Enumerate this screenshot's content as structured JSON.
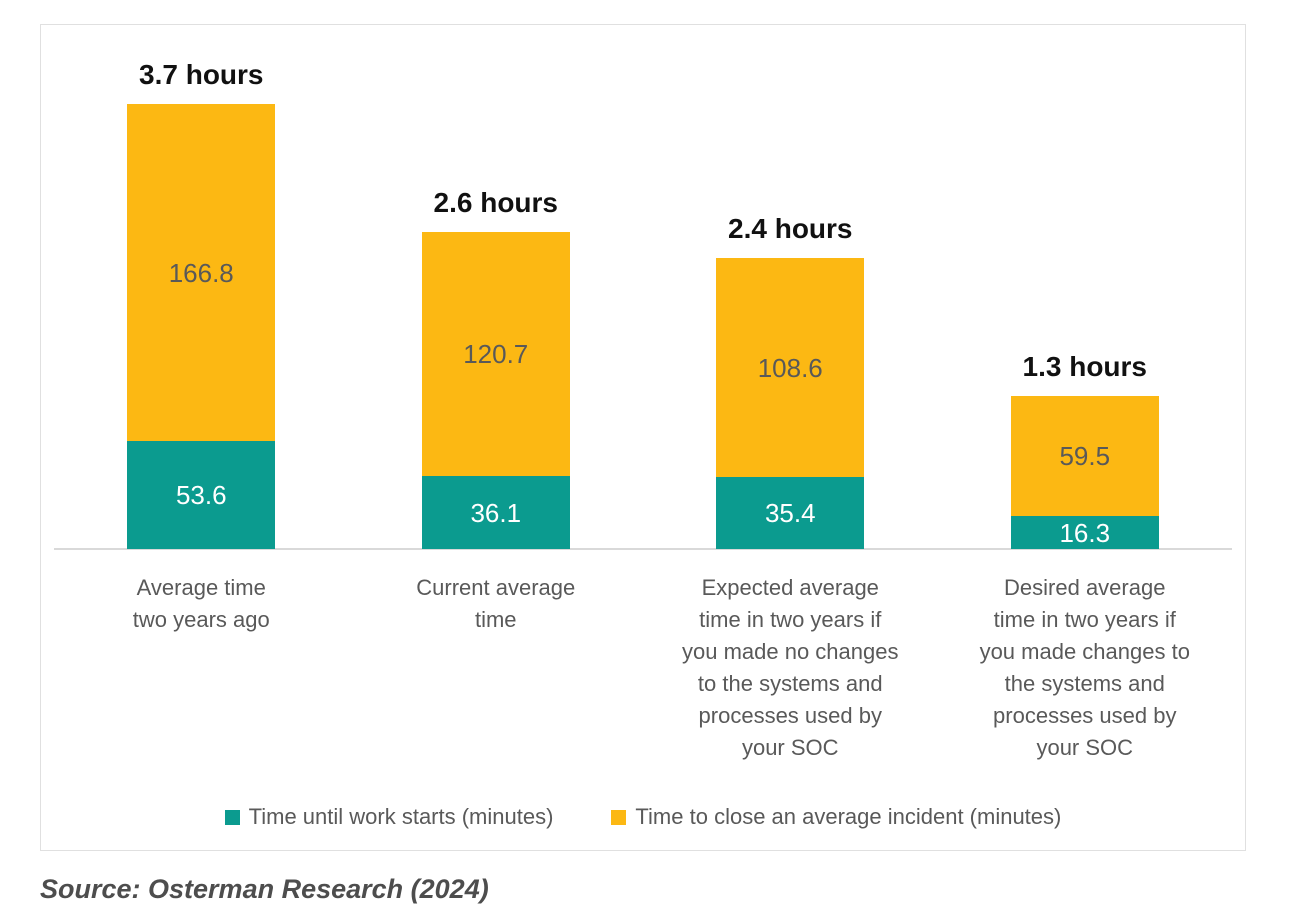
{
  "chart_data": {
    "type": "bar",
    "stacked": true,
    "title": "",
    "units": "minutes",
    "grid": false,
    "legend_position": "bottom",
    "axis_color": "#d9d9d9",
    "categories": [
      "Average time two years ago",
      "Current average time",
      "Expected average time in two years if you made no changes to the systems and processes used by your SOC",
      "Desired average time in two years if you made changes to the systems and processes used by your SOC"
    ],
    "category_lines": [
      [
        "Average time",
        "two years ago"
      ],
      [
        "Current average",
        "time"
      ],
      [
        "Expected average",
        "time in two years if",
        "you made no changes",
        "to the systems and",
        "processes used by",
        "your SOC"
      ],
      [
        "Desired average",
        "time in two years if",
        "you made changes to",
        "the systems and",
        "processes used by",
        "your SOC"
      ]
    ],
    "series": [
      {
        "name": "Time until work starts (minutes)",
        "color": "#0b9b8f",
        "label_color": "#ffffff",
        "values": [
          53.6,
          36.1,
          35.4,
          16.3
        ]
      },
      {
        "name": "Time to close an average incident (minutes)",
        "color": "#fcb813",
        "label_color": "#595959",
        "values": [
          166.8,
          120.7,
          108.6,
          59.5
        ]
      }
    ],
    "totals": [
      "3.7 hours",
      "2.6 hours",
      "2.4 hours",
      "1.3 hours"
    ]
  },
  "source": "Source: Osterman Research (2024)"
}
